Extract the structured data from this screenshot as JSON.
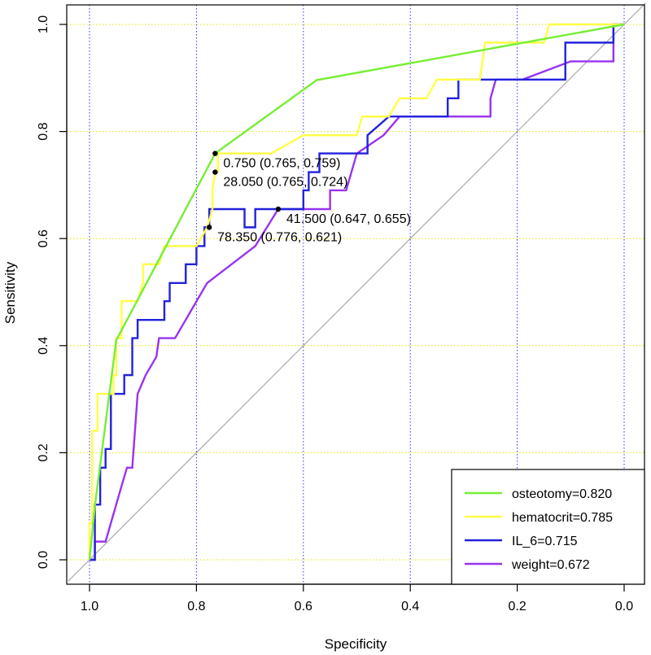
{
  "chart_data": {
    "type": "line",
    "xlabel": "Specificity",
    "ylabel": "Sensitivity",
    "xlim": [
      1.0,
      0.0
    ],
    "ylim": [
      0.0,
      1.0
    ],
    "x_reversed": true,
    "xticks": [
      "1.0",
      "0.8",
      "0.6",
      "0.4",
      "0.2",
      "0.0"
    ],
    "xtick_values": [
      1.0,
      0.8,
      0.6,
      0.4,
      0.2,
      0.0
    ],
    "yticks": [
      "0.0",
      "0.2",
      "0.4",
      "0.6",
      "0.8",
      "1.0"
    ],
    "ytick_values": [
      0.0,
      0.2,
      0.4,
      0.6,
      0.8,
      1.0
    ],
    "grid": {
      "vertical": {
        "values": [
          1.0,
          0.8,
          0.6,
          0.4,
          0.2,
          0.0
        ],
        "color": "#3333ff",
        "style": "dotted"
      },
      "horizontal": {
        "values": [
          0.0,
          0.2,
          0.4,
          0.6,
          0.8,
          1.0
        ],
        "color": "#e6e600",
        "style": "dotted"
      }
    },
    "reference_line": {
      "from": [
        1.0,
        0.0
      ],
      "to": [
        0.0,
        1.0
      ],
      "color": "#aaaaaa"
    },
    "legend_position": "bottom-right",
    "series": [
      {
        "name": "osteotomy=0.820",
        "color": "#77ee33",
        "points": [
          [
            1.0,
            0.0
          ],
          [
            0.99,
            0.1
          ],
          [
            0.95,
            0.41
          ],
          [
            0.765,
            0.759
          ],
          [
            0.575,
            0.896
          ],
          [
            0.0,
            1.0
          ]
        ]
      },
      {
        "name": "hematocrit=0.785",
        "color": "#ffff44",
        "points": [
          [
            1.0,
            0.0
          ],
          [
            1.0,
            0.069
          ],
          [
            0.995,
            0.069
          ],
          [
            0.995,
            0.241
          ],
          [
            0.985,
            0.241
          ],
          [
            0.985,
            0.31
          ],
          [
            0.955,
            0.31
          ],
          [
            0.955,
            0.345
          ],
          [
            0.95,
            0.345
          ],
          [
            0.95,
            0.414
          ],
          [
            0.94,
            0.414
          ],
          [
            0.94,
            0.483
          ],
          [
            0.91,
            0.483
          ],
          [
            0.9,
            0.517
          ],
          [
            0.9,
            0.552
          ],
          [
            0.87,
            0.552
          ],
          [
            0.86,
            0.586
          ],
          [
            0.8,
            0.586
          ],
          [
            0.78,
            0.621
          ],
          [
            0.77,
            0.655
          ],
          [
            0.77,
            0.69
          ],
          [
            0.765,
            0.724
          ],
          [
            0.76,
            0.724
          ],
          [
            0.76,
            0.759
          ],
          [
            0.66,
            0.759
          ],
          [
            0.6,
            0.793
          ],
          [
            0.5,
            0.793
          ],
          [
            0.49,
            0.828
          ],
          [
            0.44,
            0.828
          ],
          [
            0.42,
            0.862
          ],
          [
            0.37,
            0.862
          ],
          [
            0.35,
            0.897
          ],
          [
            0.27,
            0.897
          ],
          [
            0.26,
            0.966
          ],
          [
            0.15,
            0.966
          ],
          [
            0.14,
            1.0
          ],
          [
            0.0,
            1.0
          ]
        ]
      },
      {
        "name": "IL_6=0.715",
        "color": "#2222dd",
        "points": [
          [
            1.0,
            0.0
          ],
          [
            0.99,
            0.0
          ],
          [
            0.99,
            0.103
          ],
          [
            0.98,
            0.103
          ],
          [
            0.98,
            0.172
          ],
          [
            0.97,
            0.172
          ],
          [
            0.97,
            0.207
          ],
          [
            0.96,
            0.207
          ],
          [
            0.96,
            0.31
          ],
          [
            0.935,
            0.31
          ],
          [
            0.935,
            0.345
          ],
          [
            0.92,
            0.345
          ],
          [
            0.92,
            0.414
          ],
          [
            0.91,
            0.414
          ],
          [
            0.91,
            0.448
          ],
          [
            0.86,
            0.448
          ],
          [
            0.86,
            0.483
          ],
          [
            0.85,
            0.483
          ],
          [
            0.85,
            0.517
          ],
          [
            0.82,
            0.517
          ],
          [
            0.82,
            0.552
          ],
          [
            0.8,
            0.552
          ],
          [
            0.8,
            0.586
          ],
          [
            0.785,
            0.586
          ],
          [
            0.785,
            0.621
          ],
          [
            0.776,
            0.621
          ],
          [
            0.776,
            0.655
          ],
          [
            0.71,
            0.655
          ],
          [
            0.71,
            0.621
          ],
          [
            0.69,
            0.621
          ],
          [
            0.69,
            0.655
          ],
          [
            0.647,
            0.655
          ],
          [
            0.6,
            0.655
          ],
          [
            0.6,
            0.69
          ],
          [
            0.59,
            0.69
          ],
          [
            0.59,
            0.724
          ],
          [
            0.57,
            0.724
          ],
          [
            0.57,
            0.759
          ],
          [
            0.48,
            0.759
          ],
          [
            0.48,
            0.793
          ],
          [
            0.44,
            0.828
          ],
          [
            0.33,
            0.828
          ],
          [
            0.33,
            0.862
          ],
          [
            0.31,
            0.862
          ],
          [
            0.31,
            0.897
          ],
          [
            0.11,
            0.897
          ],
          [
            0.11,
            0.966
          ],
          [
            0.02,
            0.966
          ],
          [
            0.02,
            1.0
          ],
          [
            0.0,
            1.0
          ]
        ]
      },
      {
        "name": "weight=0.672",
        "color": "#9933ee",
        "points": [
          [
            1.0,
            0.0
          ],
          [
            0.99,
            0.0
          ],
          [
            0.99,
            0.034
          ],
          [
            0.97,
            0.034
          ],
          [
            0.94,
            0.138
          ],
          [
            0.93,
            0.172
          ],
          [
            0.92,
            0.172
          ],
          [
            0.91,
            0.31
          ],
          [
            0.895,
            0.345
          ],
          [
            0.875,
            0.379
          ],
          [
            0.87,
            0.414
          ],
          [
            0.84,
            0.414
          ],
          [
            0.78,
            0.517
          ],
          [
            0.69,
            0.586
          ],
          [
            0.647,
            0.655
          ],
          [
            0.55,
            0.655
          ],
          [
            0.55,
            0.69
          ],
          [
            0.52,
            0.69
          ],
          [
            0.5,
            0.759
          ],
          [
            0.45,
            0.793
          ],
          [
            0.42,
            0.828
          ],
          [
            0.25,
            0.828
          ],
          [
            0.25,
            0.862
          ],
          [
            0.24,
            0.897
          ],
          [
            0.19,
            0.897
          ],
          [
            0.1,
            0.931
          ],
          [
            0.02,
            0.931
          ],
          [
            0.02,
            1.0
          ],
          [
            0.0,
            1.0
          ]
        ]
      }
    ],
    "annotations": [
      {
        "text": "0.750 (0.765, 0.759)",
        "x": 0.765,
        "y": 0.759
      },
      {
        "text": "28.050 (0.765, 0.724)",
        "x": 0.765,
        "y": 0.724
      },
      {
        "text": "41.500 (0.647, 0.655)",
        "x": 0.647,
        "y": 0.655
      },
      {
        "text": "78.350 (0.776, 0.621)",
        "x": 0.776,
        "y": 0.621
      }
    ]
  }
}
